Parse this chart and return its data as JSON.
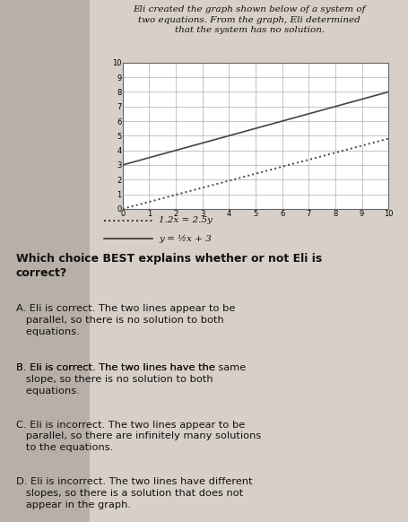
{
  "title_text": "Eli created the graph shown below of a system of\ntwo equations. From the graph, Eli determined\nthat the system has no solution.",
  "question_text": "Which choice BEST explains whether or not Eli is\ncorrect?",
  "choice_A": "A. Eli is correct. The two lines appear to be\n   parallel, so there is no solution to both\n   equations.",
  "choice_B_parts": [
    "B. Eli is correct. The two lines have the ",
    "same",
    "\n   slope, so there is no solution to both\n   equations."
  ],
  "choice_C": "C. Eli is incorrect. The two lines appear to be\n   parallel, so there are infinitely many solutions\n   to the equations.",
  "choice_D": "D. Eli is incorrect. The two lines have different\n   slopes, so there is a solution that does not\n   appear in the graph.",
  "eq1_label": "1.2x = 2.5y",
  "eq2_label": "y = ½x + 3",
  "eq1_slope": 0.48,
  "eq1_intercept": 0,
  "eq2_slope": 0.5,
  "eq2_intercept": 3,
  "xmin": 0,
  "xmax": 10,
  "ymin": 0,
  "ymax": 10,
  "grid_color": "#999999",
  "line1_color": "#444444",
  "line2_color": "#444444",
  "bg_color": "#b8b0a8",
  "plot_bg": "#ffffff",
  "text_color": "#111111",
  "paper_color": "#d8d0c8"
}
